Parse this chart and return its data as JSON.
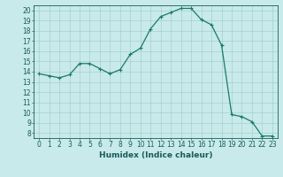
{
  "x": [
    0,
    1,
    2,
    3,
    4,
    5,
    6,
    7,
    8,
    9,
    10,
    11,
    12,
    13,
    14,
    15,
    16,
    17,
    18,
    19,
    20,
    21,
    22,
    23
  ],
  "y": [
    13.8,
    13.6,
    13.4,
    13.7,
    14.8,
    14.8,
    14.3,
    13.8,
    14.2,
    15.7,
    16.3,
    18.2,
    19.4,
    19.8,
    20.2,
    20.2,
    19.1,
    18.6,
    16.6,
    9.8,
    9.6,
    9.1,
    7.7,
    7.7
  ],
  "line_color": "#1a7a6a",
  "marker": "+",
  "marker_size": 3,
  "linewidth": 0.9,
  "bg_color": "#c8eaea",
  "grid_color": "#a0c8c8",
  "tick_color": "#1a5a5a",
  "xlabel": "Humidex (Indice chaleur)",
  "xlabel_fontsize": 6.5,
  "tick_fontsize": 5.5,
  "xlim": [
    -0.5,
    23.5
  ],
  "ylim": [
    7.5,
    20.5
  ],
  "yticks": [
    8,
    9,
    10,
    11,
    12,
    13,
    14,
    15,
    16,
    17,
    18,
    19,
    20
  ],
  "xticks": [
    0,
    1,
    2,
    3,
    4,
    5,
    6,
    7,
    8,
    9,
    10,
    11,
    12,
    13,
    14,
    15,
    16,
    17,
    18,
    19,
    20,
    21,
    22,
    23
  ]
}
